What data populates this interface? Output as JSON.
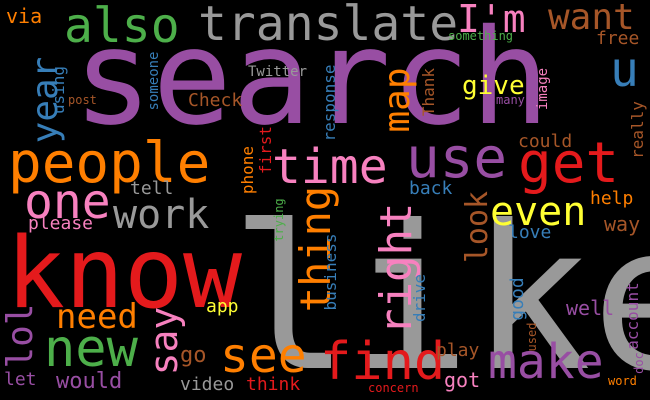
{
  "words": [
    {
      "text": "like",
      "color": "#999999",
      "vertical": false
    },
    {
      "text": "search",
      "color": "#984ea3",
      "vertical": false
    },
    {
      "text": "know",
      "color": "#e41a1c",
      "vertical": false
    },
    {
      "text": "translate",
      "color": "#999999",
      "vertical": false
    },
    {
      "text": "also",
      "color": "#4daf4a",
      "vertical": false
    },
    {
      "text": "people",
      "color": "#ff7f00",
      "vertical": false
    },
    {
      "text": "use",
      "color": "#984ea3",
      "vertical": false
    },
    {
      "text": "get",
      "color": "#e41a1c",
      "vertical": false
    },
    {
      "text": "time",
      "color": "#f781bf",
      "vertical": false
    },
    {
      "text": "one",
      "color": "#f781bf",
      "vertical": false
    },
    {
      "text": "work",
      "color": "#999999",
      "vertical": false
    },
    {
      "text": "thing",
      "color": "#ff7f00",
      "vertical": true
    },
    {
      "text": "right",
      "color": "#f781bf",
      "vertical": true
    },
    {
      "text": "even",
      "color": "#ffff33",
      "vertical": false
    },
    {
      "text": "map",
      "color": "#ff7f00",
      "vertical": true
    },
    {
      "text": "I'm",
      "color": "#f781bf",
      "vertical": false
    },
    {
      "text": "want",
      "color": "#a65628",
      "vertical": false
    },
    {
      "text": "u",
      "color": "#377eb8",
      "vertical": false
    },
    {
      "text": "year",
      "color": "#377eb8",
      "vertical": true
    },
    {
      "text": "give",
      "color": "#ffff33",
      "vertical": false
    },
    {
      "text": "new",
      "color": "#4daf4a",
      "vertical": false
    },
    {
      "text": "see",
      "color": "#ff7f00",
      "vertical": false
    },
    {
      "text": "find",
      "color": "#e41a1c",
      "vertical": false
    },
    {
      "text": "make",
      "color": "#984ea3",
      "vertical": false
    },
    {
      "text": "need",
      "color": "#ff7f00",
      "vertical": false
    },
    {
      "text": "say",
      "color": "#f781bf",
      "vertical": true
    },
    {
      "text": "lol",
      "color": "#984ea3",
      "vertical": true
    },
    {
      "text": "look",
      "color": "#a65628",
      "vertical": true
    },
    {
      "text": "via",
      "color": "#ff7f00",
      "vertical": false
    },
    {
      "text": "something",
      "color": "#4daf4a",
      "vertical": false
    },
    {
      "text": "free",
      "color": "#a65628",
      "vertical": false
    },
    {
      "text": "Twitter",
      "color": "#999999",
      "vertical": false
    },
    {
      "text": "someone",
      "color": "#377eb8",
      "vertical": true
    },
    {
      "text": "using",
      "color": "#377eb8",
      "vertical": true
    },
    {
      "text": "post",
      "color": "#a65628",
      "vertical": false
    },
    {
      "text": "Check",
      "color": "#a65628",
      "vertical": false
    },
    {
      "text": "response",
      "color": "#377eb8",
      "vertical": true
    },
    {
      "text": "Thank",
      "color": "#a65628",
      "vertical": true
    },
    {
      "text": "image",
      "color": "#f781bf",
      "vertical": true
    },
    {
      "text": "many",
      "color": "#984ea3",
      "vertical": false
    },
    {
      "text": "could",
      "color": "#a65628",
      "vertical": false
    },
    {
      "text": "really",
      "color": "#a65628",
      "vertical": true
    },
    {
      "text": "first",
      "color": "#e41a1c",
      "vertical": true
    },
    {
      "text": "phone",
      "color": "#ff7f00",
      "vertical": true
    },
    {
      "text": "tell",
      "color": "#999999",
      "vertical": false
    },
    {
      "text": "back",
      "color": "#377eb8",
      "vertical": false
    },
    {
      "text": "help",
      "color": "#ff7f00",
      "vertical": false
    },
    {
      "text": "way",
      "color": "#a65628",
      "vertical": false
    },
    {
      "text": "love",
      "color": "#377eb8",
      "vertical": false
    },
    {
      "text": "please",
      "color": "#f781bf",
      "vertical": false
    },
    {
      "text": "trying",
      "color": "#4daf4a",
      "vertical": true
    },
    {
      "text": "business",
      "color": "#377eb8",
      "vertical": true
    },
    {
      "text": "app",
      "color": "#ffff33",
      "vertical": false
    },
    {
      "text": "drive",
      "color": "#377eb8",
      "vertical": true
    },
    {
      "text": "good",
      "color": "#377eb8",
      "vertical": true
    },
    {
      "text": "well",
      "color": "#984ea3",
      "vertical": false
    },
    {
      "text": "account",
      "color": "#984ea3",
      "vertical": true
    },
    {
      "text": "used",
      "color": "#a65628",
      "vertical": true
    },
    {
      "text": "doc",
      "color": "#984ea3",
      "vertical": true
    },
    {
      "text": "go",
      "color": "#a65628",
      "vertical": false
    },
    {
      "text": "play",
      "color": "#a65628",
      "vertical": false
    },
    {
      "text": "let",
      "color": "#984ea3",
      "vertical": false
    },
    {
      "text": "would",
      "color": "#984ea3",
      "vertical": false
    },
    {
      "text": "video",
      "color": "#999999",
      "vertical": false
    },
    {
      "text": "think",
      "color": "#e41a1c",
      "vertical": false
    },
    {
      "text": "got",
      "color": "#f781bf",
      "vertical": false
    },
    {
      "text": "concern",
      "color": "#e41a1c",
      "vertical": false
    },
    {
      "text": "word",
      "color": "#ff7f00",
      "vertical": false
    }
  ]
}
